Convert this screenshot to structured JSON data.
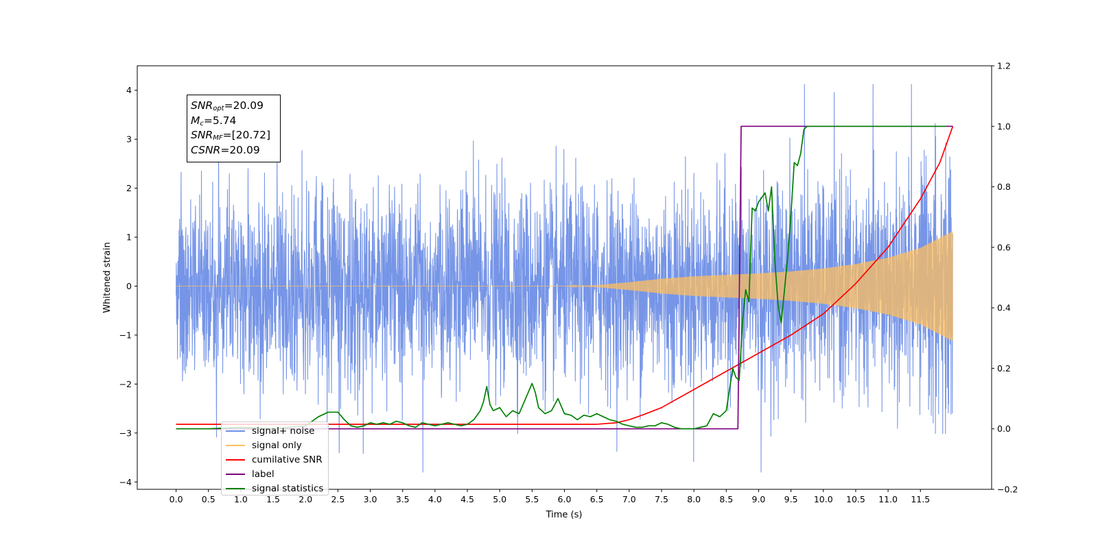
{
  "chart_data": {
    "type": "line",
    "xlabel": "Time (s)",
    "ylabel": "Whitened strain",
    "xlim": [
      -0.6,
      12.6
    ],
    "ylim": [
      -4.15,
      4.5
    ],
    "ylim_right": [
      -0.2,
      1.2
    ],
    "x_ticks": [
      "0.0",
      "0.5",
      "1.0",
      "1.5",
      "2.0",
      "2.5",
      "3.0",
      "3.5",
      "4.0",
      "4.5",
      "5.0",
      "5.5",
      "6.0",
      "6.5",
      "7.0",
      "7.5",
      "8.0",
      "8.5",
      "9.0",
      "9.5",
      "10.0",
      "10.5",
      "11.0",
      "11.5"
    ],
    "y_ticks_left": [
      "4",
      "3",
      "2",
      "1",
      "0",
      "−1",
      "−2",
      "−3",
      "−4"
    ],
    "y_ticks_right": [
      "1.2",
      "1.0",
      "0.8",
      "0.6",
      "0.4",
      "0.2",
      "0.0",
      "−0.2"
    ],
    "stats_box": [
      {
        "var": "SNR",
        "sub": "opt",
        "text": "=20.09"
      },
      {
        "var": "M",
        "sub": "c",
        "text": "=5.74"
      },
      {
        "var": "SNR",
        "sub": "MF",
        "text": "=[20.72]"
      },
      {
        "var": "CSNR",
        "sub": "",
        "text": "=20.09"
      }
    ],
    "legend": {
      "location": "lower-left",
      "entries": [
        {
          "name": "signal+ noise",
          "color": "#6f8fe6"
        },
        {
          "name": "signal only",
          "color": "#ffbf5f"
        },
        {
          "name": "cumilative SNR",
          "color": "#ff0000"
        },
        {
          "name": "label",
          "color": "#800080"
        },
        {
          "name": "signal statistics",
          "color": "#008000"
        }
      ]
    },
    "series": [
      {
        "name": "signal+ noise",
        "axis": "left",
        "color": "#6f8fe6",
        "kind": "noise_band",
        "x_range": [
          0.0,
          12.0
        ],
        "sigma": 1.0,
        "extremes": {
          "max": 4.12,
          "min": -3.8
        }
      },
      {
        "name": "signal only",
        "axis": "left",
        "color": "#ffbf5f",
        "kind": "chirp_envelope",
        "envelope": {
          "x": [
            0.0,
            6.0,
            6.5,
            7.0,
            7.5,
            8.0,
            8.5,
            9.0,
            9.5,
            10.0,
            10.5,
            11.0,
            11.5,
            12.0
          ],
          "y": [
            0.0,
            0.0,
            0.02,
            0.08,
            0.15,
            0.2,
            0.23,
            0.26,
            0.3,
            0.36,
            0.45,
            0.58,
            0.78,
            1.12
          ]
        }
      },
      {
        "name": "cumilative SNR",
        "axis": "right",
        "color": "#ff0000",
        "x": [
          0.0,
          6.5,
          6.8,
          7.0,
          7.2,
          7.5,
          8.0,
          8.5,
          9.0,
          9.5,
          10.0,
          10.5,
          11.0,
          11.5,
          11.8,
          12.0
        ],
        "y": [
          0.015,
          0.015,
          0.02,
          0.03,
          0.045,
          0.07,
          0.13,
          0.19,
          0.25,
          0.31,
          0.38,
          0.48,
          0.6,
          0.76,
          0.88,
          1.0
        ]
      },
      {
        "name": "label",
        "axis": "right",
        "color": "#800080",
        "x": [
          0.0,
          8.68,
          8.73,
          12.0
        ],
        "y": [
          0.0,
          0.0,
          1.0,
          1.0
        ]
      },
      {
        "name": "signal statistics",
        "axis": "right",
        "color": "#008000",
        "x": [
          0.0,
          0.5,
          1.0,
          1.5,
          2.0,
          2.2,
          2.35,
          2.5,
          2.6,
          2.7,
          2.8,
          2.9,
          3.0,
          3.1,
          3.2,
          3.3,
          3.4,
          3.5,
          3.6,
          3.7,
          3.8,
          3.9,
          4.0,
          4.1,
          4.2,
          4.3,
          4.4,
          4.5,
          4.6,
          4.7,
          4.75,
          4.8,
          4.85,
          4.9,
          5.0,
          5.1,
          5.2,
          5.3,
          5.4,
          5.5,
          5.55,
          5.6,
          5.7,
          5.8,
          5.9,
          6.0,
          6.1,
          6.2,
          6.3,
          6.4,
          6.5,
          6.6,
          6.7,
          6.8,
          6.9,
          7.0,
          7.1,
          7.2,
          7.3,
          7.4,
          7.5,
          7.6,
          7.7,
          7.8,
          7.9,
          8.0,
          8.1,
          8.2,
          8.3,
          8.4,
          8.5,
          8.6,
          8.65,
          8.7,
          8.75,
          8.8,
          8.85,
          8.9,
          8.95,
          9.0,
          9.1,
          9.15,
          9.2,
          9.25,
          9.3,
          9.35,
          9.4,
          9.45,
          9.5,
          9.55,
          9.6,
          9.65,
          9.7,
          9.75,
          9.8,
          9.9,
          10.0,
          10.2,
          10.5,
          11.0,
          11.5,
          11.9
        ],
        "y": [
          0.0,
          0.0,
          0.005,
          0.0,
          0.01,
          0.04,
          0.055,
          0.055,
          0.03,
          0.01,
          0.005,
          0.01,
          0.02,
          0.015,
          0.02,
          0.015,
          0.025,
          0.02,
          0.01,
          0.005,
          0.02,
          0.015,
          0.01,
          0.015,
          0.02,
          0.015,
          0.01,
          0.015,
          0.03,
          0.06,
          0.09,
          0.14,
          0.08,
          0.06,
          0.07,
          0.04,
          0.06,
          0.05,
          0.1,
          0.15,
          0.12,
          0.07,
          0.05,
          0.06,
          0.1,
          0.05,
          0.045,
          0.03,
          0.045,
          0.04,
          0.05,
          0.04,
          0.03,
          0.025,
          0.015,
          0.01,
          0.005,
          0.005,
          0.01,
          0.01,
          0.02,
          0.015,
          0.005,
          0.0,
          0.0,
          0.0,
          0.005,
          0.01,
          0.05,
          0.04,
          0.06,
          0.2,
          0.17,
          0.16,
          0.35,
          0.46,
          0.42,
          0.73,
          0.72,
          0.75,
          0.78,
          0.72,
          0.8,
          0.56,
          0.41,
          0.35,
          0.46,
          0.57,
          0.71,
          0.88,
          0.87,
          0.91,
          0.99,
          1.0,
          1.0,
          1.0,
          1.0,
          1.0,
          1.0,
          1.0,
          1.0,
          1.0
        ]
      }
    ]
  }
}
